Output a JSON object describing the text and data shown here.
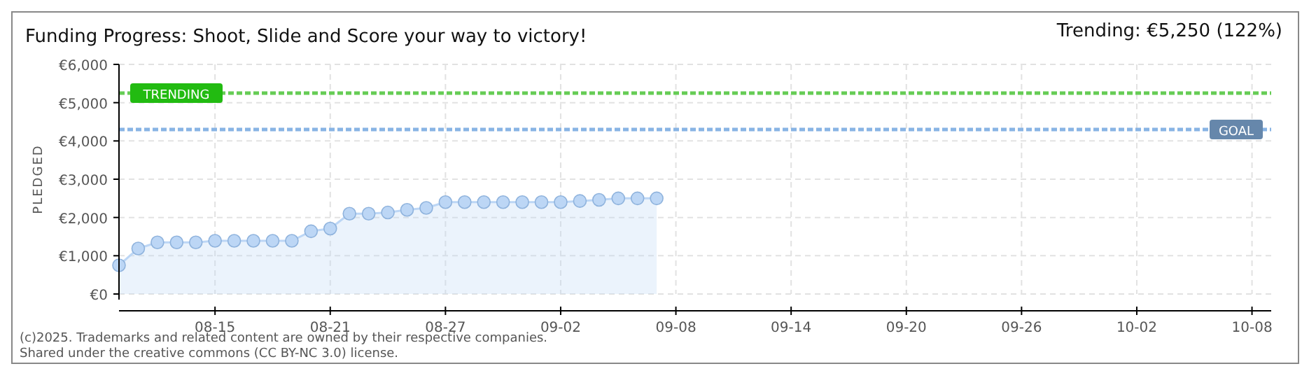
{
  "chart_data": {
    "type": "area",
    "title": "Funding Progress: Shoot, Slide and Score your way to victory!",
    "subtitle": "Trending:  €5,250 (122%)",
    "ylabel": "PLEDGED",
    "x": [
      "--08-10",
      "--08-11",
      "--08-12",
      "--08-13",
      "--08-14",
      "--08-15",
      "--08-16",
      "--08-17",
      "--08-18",
      "--08-19",
      "--08-20",
      "--08-21",
      "--08-22",
      "--08-23",
      "--08-24",
      "--08-25",
      "--08-26",
      "--08-27",
      "--08-28",
      "--08-29",
      "--08-30",
      "--08-31",
      "--09-01",
      "--09-02",
      "--09-03",
      "--09-04",
      "--09-05",
      "--09-06",
      "--09-07"
    ],
    "series": [
      {
        "color": "#bcd6f5",
        "values": [
          750,
          1190,
          1350,
          1350,
          1350,
          1390,
          1390,
          1390,
          1390,
          1390,
          1640,
          1710,
          2100,
          2100,
          2130,
          2200,
          2250,
          2400,
          2400,
          2400,
          2400,
          2400,
          2400,
          2400,
          2430,
          2460,
          2500,
          2500,
          2500
        ]
      }
    ],
    "xlim": [
      "--08-10",
      "--10-09"
    ],
    "xticks": [
      {
        "value": "--08-15",
        "label": "08-15"
      },
      {
        "value": "--08-21",
        "label": "08-21"
      },
      {
        "value": "--08-27",
        "label": "08-27"
      },
      {
        "value": "--09-02",
        "label": "09-02"
      },
      {
        "value": "--09-08",
        "label": "09-08"
      },
      {
        "value": "--09-14",
        "label": "09-14"
      },
      {
        "value": "--09-20",
        "label": "09-20"
      },
      {
        "value": "--09-26",
        "label": "09-26"
      },
      {
        "value": "--10-02",
        "label": "10-02"
      },
      {
        "value": "--10-08",
        "label": "10-08"
      }
    ],
    "ylim": [
      0,
      6000
    ],
    "yticks": [
      {
        "value": 0,
        "label": "€0"
      },
      {
        "value": 1000,
        "label": "€1,000"
      },
      {
        "value": 2000,
        "label": "€2,000"
      },
      {
        "value": 3000,
        "label": "€3,000"
      },
      {
        "value": 4000,
        "label": "€4,000"
      },
      {
        "value": 5000,
        "label": "€5,000"
      },
      {
        "value": 6000,
        "label": "€6,000"
      }
    ],
    "ref_lines": [
      {
        "axis": "y",
        "value": 5250,
        "label": "TRENDING",
        "color": "#66cc55",
        "line_style": "dotted"
      },
      {
        "axis": "y",
        "value": 4300,
        "label": "GOAL",
        "color": "#88b4e4",
        "line_style": "dotted"
      }
    ],
    "annotations": [
      "(c)2025. Trademarks and related content are owned by their respective companies.",
      "Shared under the creative commons (CC BY-NC 3.0) license."
    ],
    "grid": true,
    "marker": "circle"
  }
}
